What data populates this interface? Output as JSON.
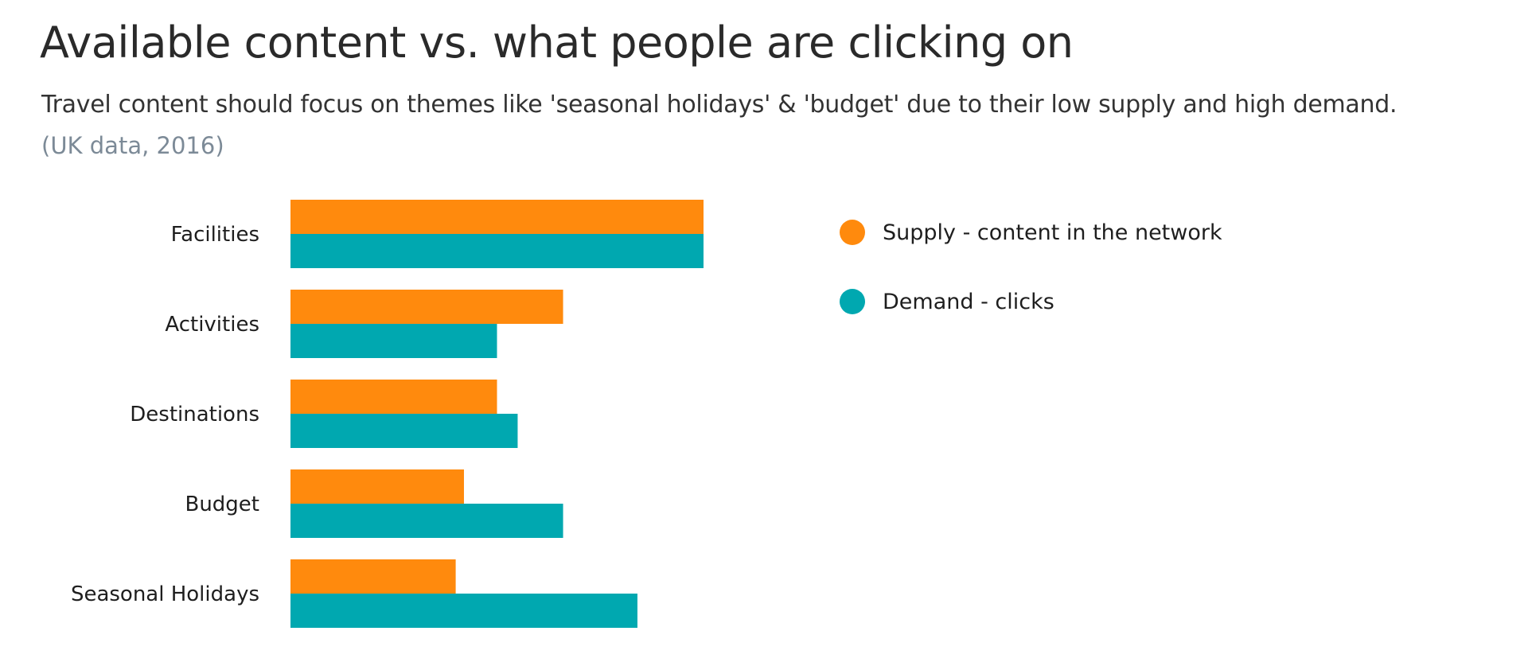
{
  "header": {
    "title": "Available content vs. what people are clicking on",
    "subtitle": "Travel content should focus on themes like 'seasonal holidays' & 'budget' due to their low supply and high demand.",
    "note": "(UK data, 2016)"
  },
  "colors": {
    "supply": "#ff8a0d",
    "demand": "#00a8b0"
  },
  "chart_data": {
    "type": "bar",
    "orientation": "horizontal",
    "title": "Available content vs. what people are clicking on",
    "subtitle": "Travel content should focus on themes like 'seasonal holidays' & 'budget' due to their low supply and high demand.",
    "note": "(UK data, 2016)",
    "categories": [
      "Facilities",
      "Activities",
      "Destinations",
      "Budget",
      "Seasonal Holidays"
    ],
    "series": [
      {
        "name": "Supply - content in the network",
        "color": "#ff8a0d",
        "values": [
          100,
          66,
          50,
          42,
          40
        ]
      },
      {
        "name": "Demand - clicks",
        "color": "#00a8b0",
        "values": [
          100,
          50,
          55,
          66,
          84
        ]
      }
    ],
    "xlim": [
      0,
      100
    ],
    "grid": false,
    "axes_visible": false,
    "legend_position": "right"
  }
}
